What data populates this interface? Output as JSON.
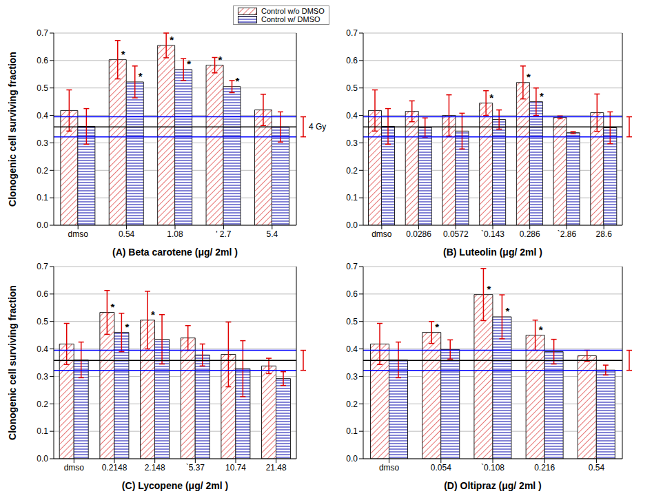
{
  "chart_data": [
    {
      "type": "bar",
      "x_label": "(A) Beta carotene  (μg/ 2ml )",
      "y_label": "Clonogenic cell surviving fraction",
      "categories": [
        "dmso",
        "0.54",
        "1.08",
        "' 2.7",
        "5.4"
      ],
      "ylim": [
        0,
        0.7
      ],
      "yticks": [
        {
          "value": 0,
          "label": "0.0"
        },
        0.1,
        0.2,
        0.3,
        0.4,
        0.5,
        0.6,
        0.7
      ],
      "grid": true,
      "series": [
        {
          "name": "Control w/o DMSO",
          "color": "#e05050",
          "values": [
            0.418,
            0.603,
            0.655,
            0.583,
            0.42
          ],
          "errors": [
            0.075,
            0.07,
            0.045,
            0.028,
            0.057
          ],
          "annotations": [
            null,
            "*",
            "*",
            "*",
            null
          ]
        },
        {
          "name": "Control w/ DMSO",
          "color": "#4040c0",
          "values": [
            0.36,
            0.522,
            0.567,
            0.505,
            0.358
          ],
          "errors": [
            0.065,
            0.058,
            0.04,
            0.022,
            0.055
          ],
          "annotations": [
            null,
            "*",
            "*",
            "*",
            null
          ]
        }
      ],
      "reference": {
        "value": 0.358,
        "lower": 0.322,
        "upper": 0.395,
        "label": "4 Gy"
      }
    },
    {
      "type": "bar",
      "x_label": "(B) Luteolin  (μg/ 2ml )",
      "categories": [
        "dmso",
        "0.0286",
        "0.0572",
        "`0.143",
        "0.286",
        "`2.86",
        "28.6"
      ],
      "ylim": [
        0,
        0.7
      ],
      "yticks": [
        {
          "value": 0,
          "label": "0.0"
        },
        0.1,
        0.2,
        0.3,
        0.4,
        0.5,
        0.6,
        0.7
      ],
      "grid": true,
      "series": [
        {
          "name": "Control w/o DMSO",
          "color": "#e05050",
          "values": [
            0.418,
            0.415,
            0.4,
            0.445,
            0.52,
            0.393,
            0.41
          ],
          "errors": [
            0.075,
            0.038,
            0.075,
            0.045,
            0.06,
            0.005,
            0.068
          ],
          "annotations": [
            null,
            null,
            null,
            "*",
            "*",
            null,
            null
          ]
        },
        {
          "name": "Control w/ DMSO",
          "color": "#4040c0",
          "values": [
            0.36,
            0.356,
            0.343,
            0.385,
            0.45,
            0.337,
            0.355
          ],
          "errors": [
            0.065,
            0.035,
            0.065,
            0.035,
            0.05,
            0.004,
            0.058
          ],
          "annotations": [
            null,
            null,
            null,
            null,
            "*",
            null,
            null
          ]
        }
      ],
      "reference": {
        "value": 0.358,
        "lower": 0.322,
        "upper": 0.395
      }
    },
    {
      "type": "bar",
      "x_label": "(C) Lycopene  (μg/ 2ml )",
      "y_label": "Clonogenic cell surviving fraction",
      "categories": [
        "dmso",
        "0.2148",
        "2.148",
        "`5.37",
        "10.74",
        "21.48"
      ],
      "ylim": [
        0,
        0.7
      ],
      "yticks": [
        {
          "value": 0,
          "label": "0.0"
        },
        0.1,
        0.2,
        0.3,
        0.4,
        0.5,
        0.6,
        0.7
      ],
      "grid": true,
      "series": [
        {
          "name": "Control w/o DMSO",
          "color": "#e05050",
          "values": [
            0.418,
            0.533,
            0.505,
            0.44,
            0.38,
            0.338
          ],
          "errors": [
            0.075,
            0.08,
            0.105,
            0.045,
            0.118,
            0.028
          ],
          "annotations": [
            null,
            "*",
            "*",
            null,
            null,
            null
          ]
        },
        {
          "name": "Control w/ DMSO",
          "color": "#4040c0",
          "values": [
            0.36,
            0.46,
            0.435,
            0.378,
            0.328,
            0.292
          ],
          "errors": [
            0.065,
            0.07,
            0.09,
            0.04,
            0.102,
            0.025
          ],
          "annotations": [
            null,
            "*",
            null,
            null,
            null,
            null
          ]
        }
      ],
      "reference": {
        "value": 0.358,
        "lower": 0.322,
        "upper": 0.395
      }
    },
    {
      "type": "bar",
      "x_label": "(D) Oltipraz  (μg/ 2ml )",
      "categories": [
        "dmso",
        "0.054",
        "`0.108",
        "0.216",
        "0.54"
      ],
      "ylim": [
        0,
        0.7
      ],
      "yticks": [
        {
          "value": 0,
          "label": "0.0"
        },
        0.1,
        0.2,
        0.3,
        0.4,
        0.5,
        0.6,
        0.7
      ],
      "grid": true,
      "series": [
        {
          "name": "Control w/o DMSO",
          "color": "#e05050",
          "values": [
            0.418,
            0.46,
            0.598,
            0.45,
            0.375
          ],
          "errors": [
            0.075,
            0.04,
            0.095,
            0.055,
            0.02
          ],
          "annotations": [
            null,
            "*",
            "*",
            "*",
            null
          ]
        },
        {
          "name": "Control w/ DMSO",
          "color": "#4040c0",
          "values": [
            0.36,
            0.398,
            0.517,
            0.39,
            0.323
          ],
          "errors": [
            0.065,
            0.035,
            0.08,
            0.045,
            0.018
          ],
          "annotations": [
            null,
            null,
            "*",
            null,
            null
          ]
        }
      ],
      "reference": {
        "value": 0.358,
        "lower": 0.322,
        "upper": 0.395
      }
    }
  ]
}
